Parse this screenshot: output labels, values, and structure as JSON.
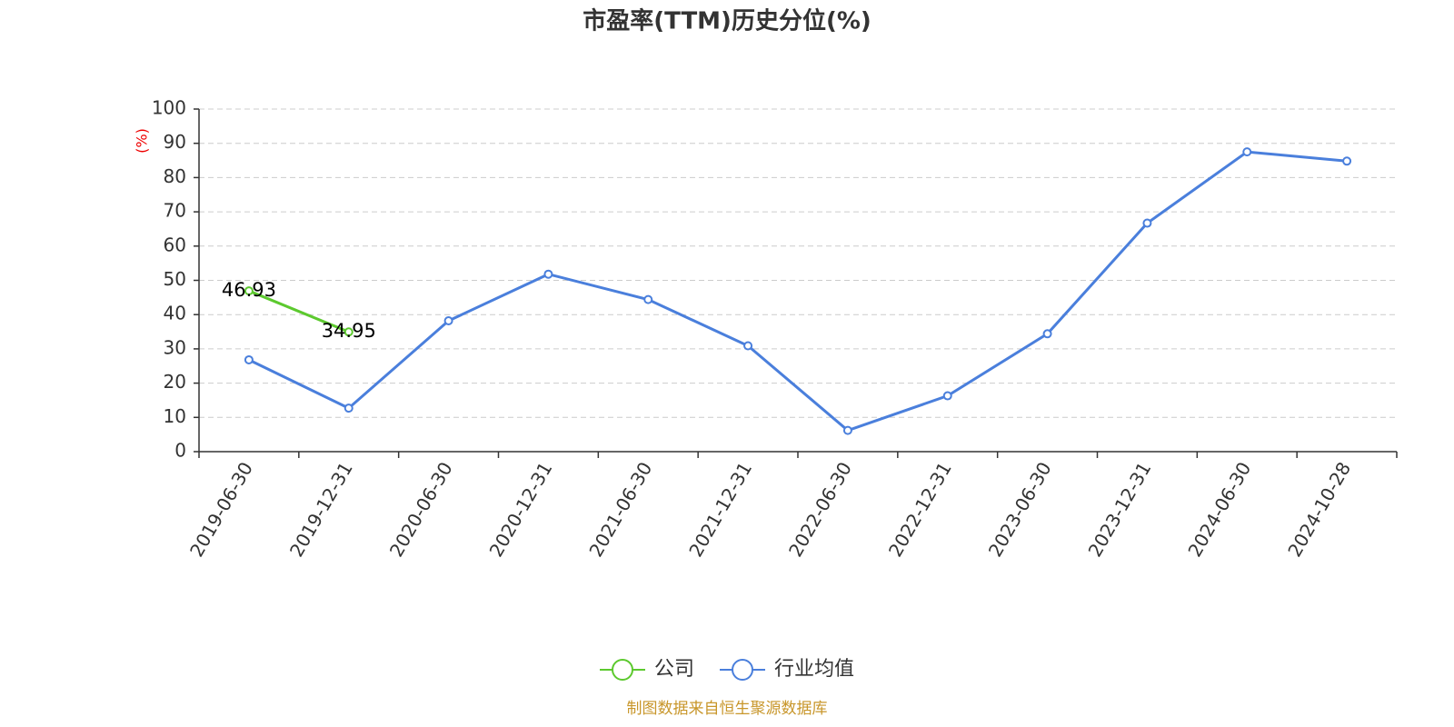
{
  "chart_data": {
    "type": "line",
    "title": "市盈率(TTM)历史分位(%)",
    "y_label": "(%)",
    "source": "制图数据来自恒生聚源数据库",
    "categories": [
      "2019-06-30",
      "2019-12-31",
      "2020-06-30",
      "2020-12-31",
      "2021-06-30",
      "2021-12-31",
      "2022-06-30",
      "2022-12-31",
      "2023-06-30",
      "2023-12-31",
      "2024-06-30",
      "2024-10-28"
    ],
    "series": [
      {
        "name": "公司",
        "color": "#5cc92e",
        "data_labels": true,
        "values": [
          46.93,
          34.95,
          null,
          null,
          null,
          null,
          null,
          null,
          null,
          null,
          null,
          null
        ]
      },
      {
        "name": "行业均值",
        "color": "#4a7fdc",
        "data_labels": false,
        "values": [
          26.8,
          12.7,
          38.2,
          51.8,
          44.4,
          30.9,
          6.2,
          16.3,
          34.4,
          66.7,
          87.5,
          84.8
        ]
      }
    ],
    "ylim": [
      0,
      100
    ],
    "yticks": [
      0,
      10,
      20,
      30,
      40,
      50,
      60,
      70,
      80,
      90,
      100
    ],
    "grid": true,
    "legend": "bottom"
  }
}
